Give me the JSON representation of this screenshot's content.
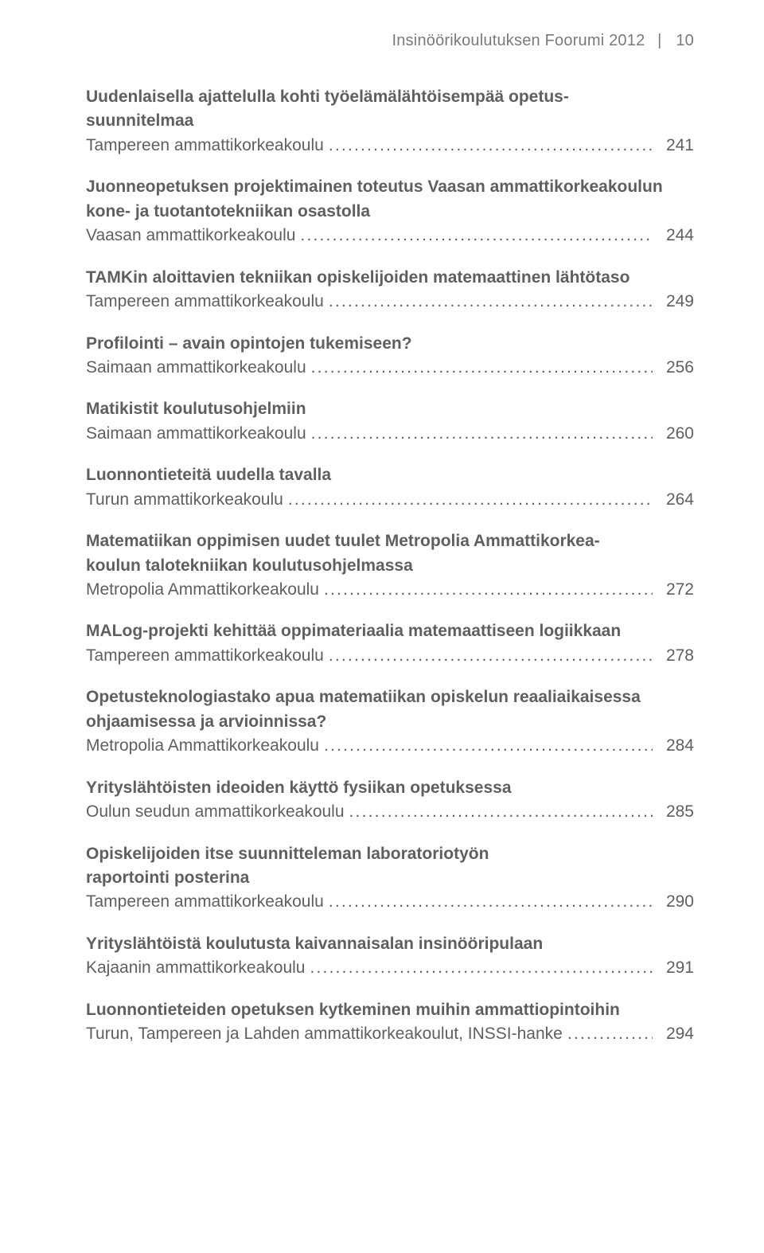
{
  "header": {
    "title": "Insinöörikoulutuksen Foorumi 2012",
    "page_number": "10"
  },
  "entries": [
    {
      "title_lines": [
        "Uudenlaisella ajattelulla kohti työelämälähtöisempää opetus-",
        "suunnitelmaa"
      ],
      "source": "Tampereen ammattikorkeakoulu",
      "page": "241"
    },
    {
      "title_lines": [
        "Juonneopetuksen projektimainen toteutus Vaasan ammattikorkeakoulun",
        "kone- ja tuotantotekniikan osastolla"
      ],
      "source": "Vaasan ammattikorkeakoulu",
      "page": "244"
    },
    {
      "title_lines": [
        "TAMKin aloittavien tekniikan opiskelijoiden matemaattinen lähtötaso"
      ],
      "source": "Tampereen ammattikorkeakoulu",
      "page": "249"
    },
    {
      "title_lines": [
        "Profilointi – avain opintojen tukemiseen?"
      ],
      "source": "Saimaan ammattikorkeakoulu",
      "page": "256"
    },
    {
      "title_lines": [
        "Matikistit koulutusohjelmiin"
      ],
      "source": "Saimaan ammattikorkeakoulu",
      "page": "260"
    },
    {
      "title_lines": [
        "Luonnontieteitä uudella tavalla"
      ],
      "source": "Turun ammattikorkeakoulu",
      "page": "264"
    },
    {
      "title_lines": [
        "Matematiikan oppimisen uudet tuulet Metropolia Ammattikorkea-",
        "koulun talotekniikan koulutusohjelmassa"
      ],
      "source": "Metropolia Ammattikorkeakoulu",
      "page": "272"
    },
    {
      "title_lines": [
        "MALog-projekti kehittää oppimateriaalia matemaattiseen logiikkaan"
      ],
      "source": "Tampereen ammattikorkeakoulu",
      "page": "278"
    },
    {
      "title_lines": [
        "Opetusteknologiastako apua matematiikan opiskelun reaaliaikaisessa",
        "ohjaamisessa ja arvioinnissa?"
      ],
      "source": "Metropolia Ammattikorkeakoulu",
      "page": "284"
    },
    {
      "title_lines": [
        "Yrityslähtöisten ideoiden käyttö fysiikan opetuksessa"
      ],
      "source": "Oulun seudun ammattikorkeakoulu",
      "page": "285"
    },
    {
      "title_lines": [
        "Opiskelijoiden itse suunnitteleman laboratoriotyön",
        "raportointi posterina"
      ],
      "source": "Tampereen ammattikorkeakoulu",
      "page": "290"
    },
    {
      "title_lines": [
        "Yrityslähtöistä koulutusta kaivannaisalan insinööripulaan"
      ],
      "source": "Kajaanin ammattikorkeakoulu",
      "page": "291"
    },
    {
      "title_lines": [
        "Luonnontieteiden opetuksen kytkeminen muihin ammattiopintoihin"
      ],
      "source": "Turun, Tampereen ja Lahden ammattikorkeakoulut, INSSI-hanke",
      "page": "294"
    }
  ]
}
